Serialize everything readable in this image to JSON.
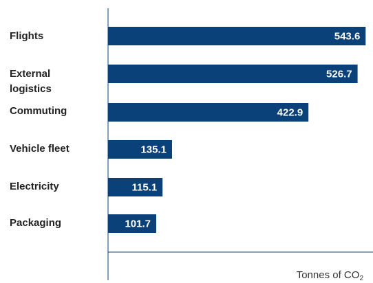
{
  "chart_data": {
    "type": "bar",
    "orientation": "horizontal",
    "categories": [
      "Flights",
      "External logistics",
      "Commuting",
      "Vehicle fleet",
      "Electricity",
      "Packaging"
    ],
    "category_lines": [
      [
        "Flights"
      ],
      [
        "External",
        "logistics"
      ],
      [
        "Commuting"
      ],
      [
        "Vehicle fleet"
      ],
      [
        "Electricity"
      ],
      [
        "Packaging"
      ]
    ],
    "values": [
      543.6,
      526.7,
      422.9,
      135.1,
      115.1,
      101.7
    ],
    "value_labels": [
      "543.6",
      "526.7",
      "422.9",
      "135.1",
      "115.1",
      "101.7"
    ],
    "xlabel": "Tonnes of CO",
    "xlabel_subscript": "2",
    "xlim": [
      0,
      550
    ],
    "grid": false,
    "bar_color": "#0a4178"
  }
}
